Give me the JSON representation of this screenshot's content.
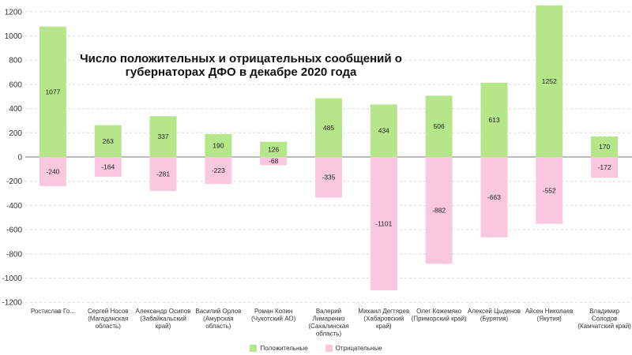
{
  "chart_data": {
    "type": "bar",
    "title": "Число положительных и отрицательных сообщений о губернаторах ДФО в декабре 2020 года",
    "categories": [
      [
        "Ростислав Го..."
      ],
      [
        "Сергей Носов",
        "(Магаданская",
        "область)"
      ],
      [
        "Александр Осипов",
        "(Забайкальский",
        "край)"
      ],
      [
        "Василий Орлов",
        "(Амурская",
        "область)"
      ],
      [
        "Роман Копин",
        "(Чукотский АО)"
      ],
      [
        "Валерий",
        "Лимаренко",
        "(Сахалинская",
        "область)"
      ],
      [
        "Михаил Дегтярев",
        "(Хабаровский",
        "край)"
      ],
      [
        "Олег Кожемяко",
        "(Приморский край)"
      ],
      [
        "Алексей Цыденов",
        "(Бурятия)"
      ],
      [
        "Айсен Николаев",
        "(Якутия)"
      ],
      [
        "Владимир",
        "Солодов",
        "(Камчатский край)"
      ]
    ],
    "series": [
      {
        "name": "Положительные",
        "color": "#b5e68a",
        "values": [
          1077,
          263,
          337,
          190,
          126,
          485,
          434,
          506,
          613,
          1252,
          170
        ]
      },
      {
        "name": "Отрицательные",
        "color": "#f9c8df",
        "values": [
          -240,
          -164,
          -281,
          -223,
          -68,
          -335,
          -1101,
          -882,
          -663,
          -552,
          -172
        ]
      }
    ],
    "ylim": [
      -1200,
      1250
    ],
    "yticks": [
      1200,
      1000,
      800,
      600,
      400,
      200,
      0,
      -200,
      -400,
      -600,
      -800,
      -1000,
      -1200
    ],
    "stacked": true,
    "grid": true,
    "legend": "bottom-center"
  }
}
